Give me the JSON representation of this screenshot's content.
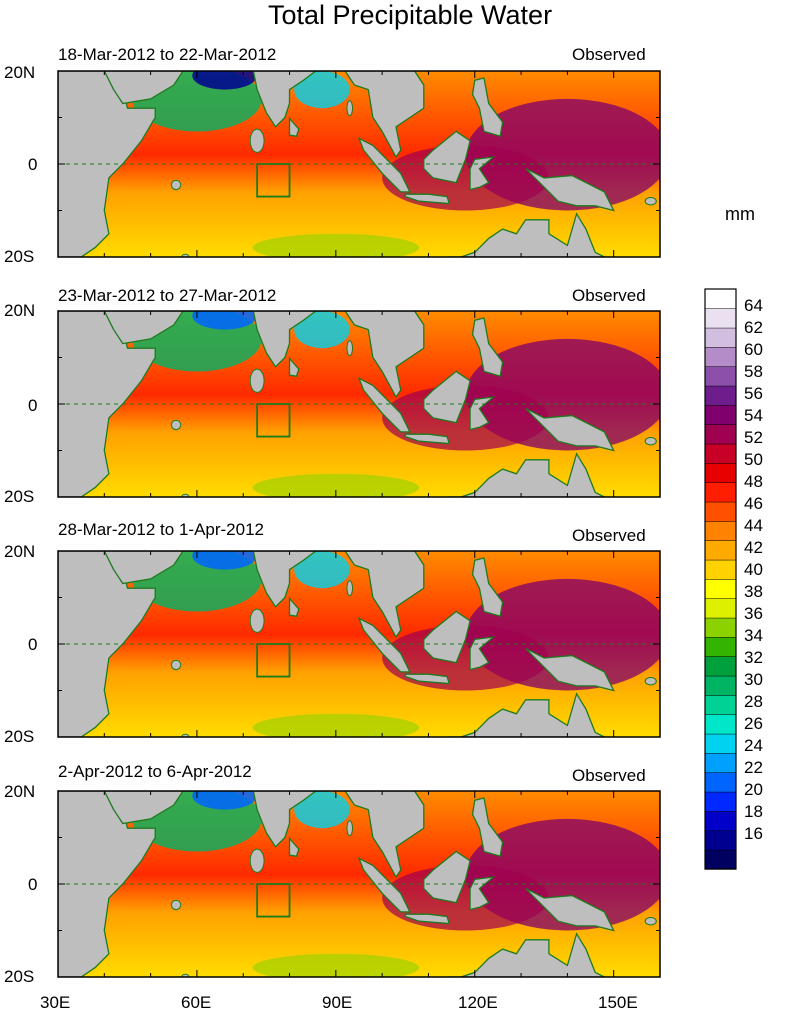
{
  "chart_data": {
    "type": "heatmap",
    "title": "Total Precipitable Water",
    "units": "mm",
    "panels": [
      {
        "date_range": "18-Mar-2012 to 22-Mar-2012",
        "status": "Observed",
        "y_labels": [
          "20N",
          "0",
          "20S"
        ]
      },
      {
        "date_range": "23-Mar-2012 to 27-Mar-2012",
        "status": "Observed",
        "y_labels": [
          "20N",
          "0",
          "20S"
        ]
      },
      {
        "date_range": "28-Mar-2012 to 1-Apr-2012",
        "status": "Observed",
        "y_labels": [
          "20N",
          "0",
          "20S"
        ]
      },
      {
        "date_range": "2-Apr-2012 to 6-Apr-2012",
        "status": "Observed",
        "y_labels": [
          "20N",
          "0",
          "20S"
        ]
      }
    ],
    "x_ticks": [
      "30E",
      "60E",
      "90E",
      "120E",
      "150E"
    ],
    "x_range": [
      30,
      160
    ],
    "y_range": [
      -20,
      20
    ],
    "colorbar": {
      "labels": [
        "64",
        "62",
        "60",
        "58",
        "56",
        "54",
        "52",
        "50",
        "48",
        "46",
        "44",
        "42",
        "40",
        "38",
        "36",
        "34",
        "32",
        "30",
        "28",
        "26",
        "24",
        "22",
        "20",
        "18",
        "16"
      ],
      "range": [
        15,
        66
      ],
      "colors": [
        "#000060",
        "#000090",
        "#0000c8",
        "#0028ff",
        "#0064ff",
        "#00a0ff",
        "#00d2f0",
        "#00e6c8",
        "#00d296",
        "#00b464",
        "#00a03c",
        "#32b400",
        "#8cd200",
        "#dcf000",
        "#ffff00",
        "#ffd200",
        "#ffaa00",
        "#ff8200",
        "#ff5000",
        "#ff1e00",
        "#e60000",
        "#c80028",
        "#a00050",
        "#80006e",
        "#6e1e8c",
        "#8c50aa",
        "#b48cc8",
        "#d2bedf",
        "#ebe0f0",
        "#ffffff"
      ]
    }
  }
}
